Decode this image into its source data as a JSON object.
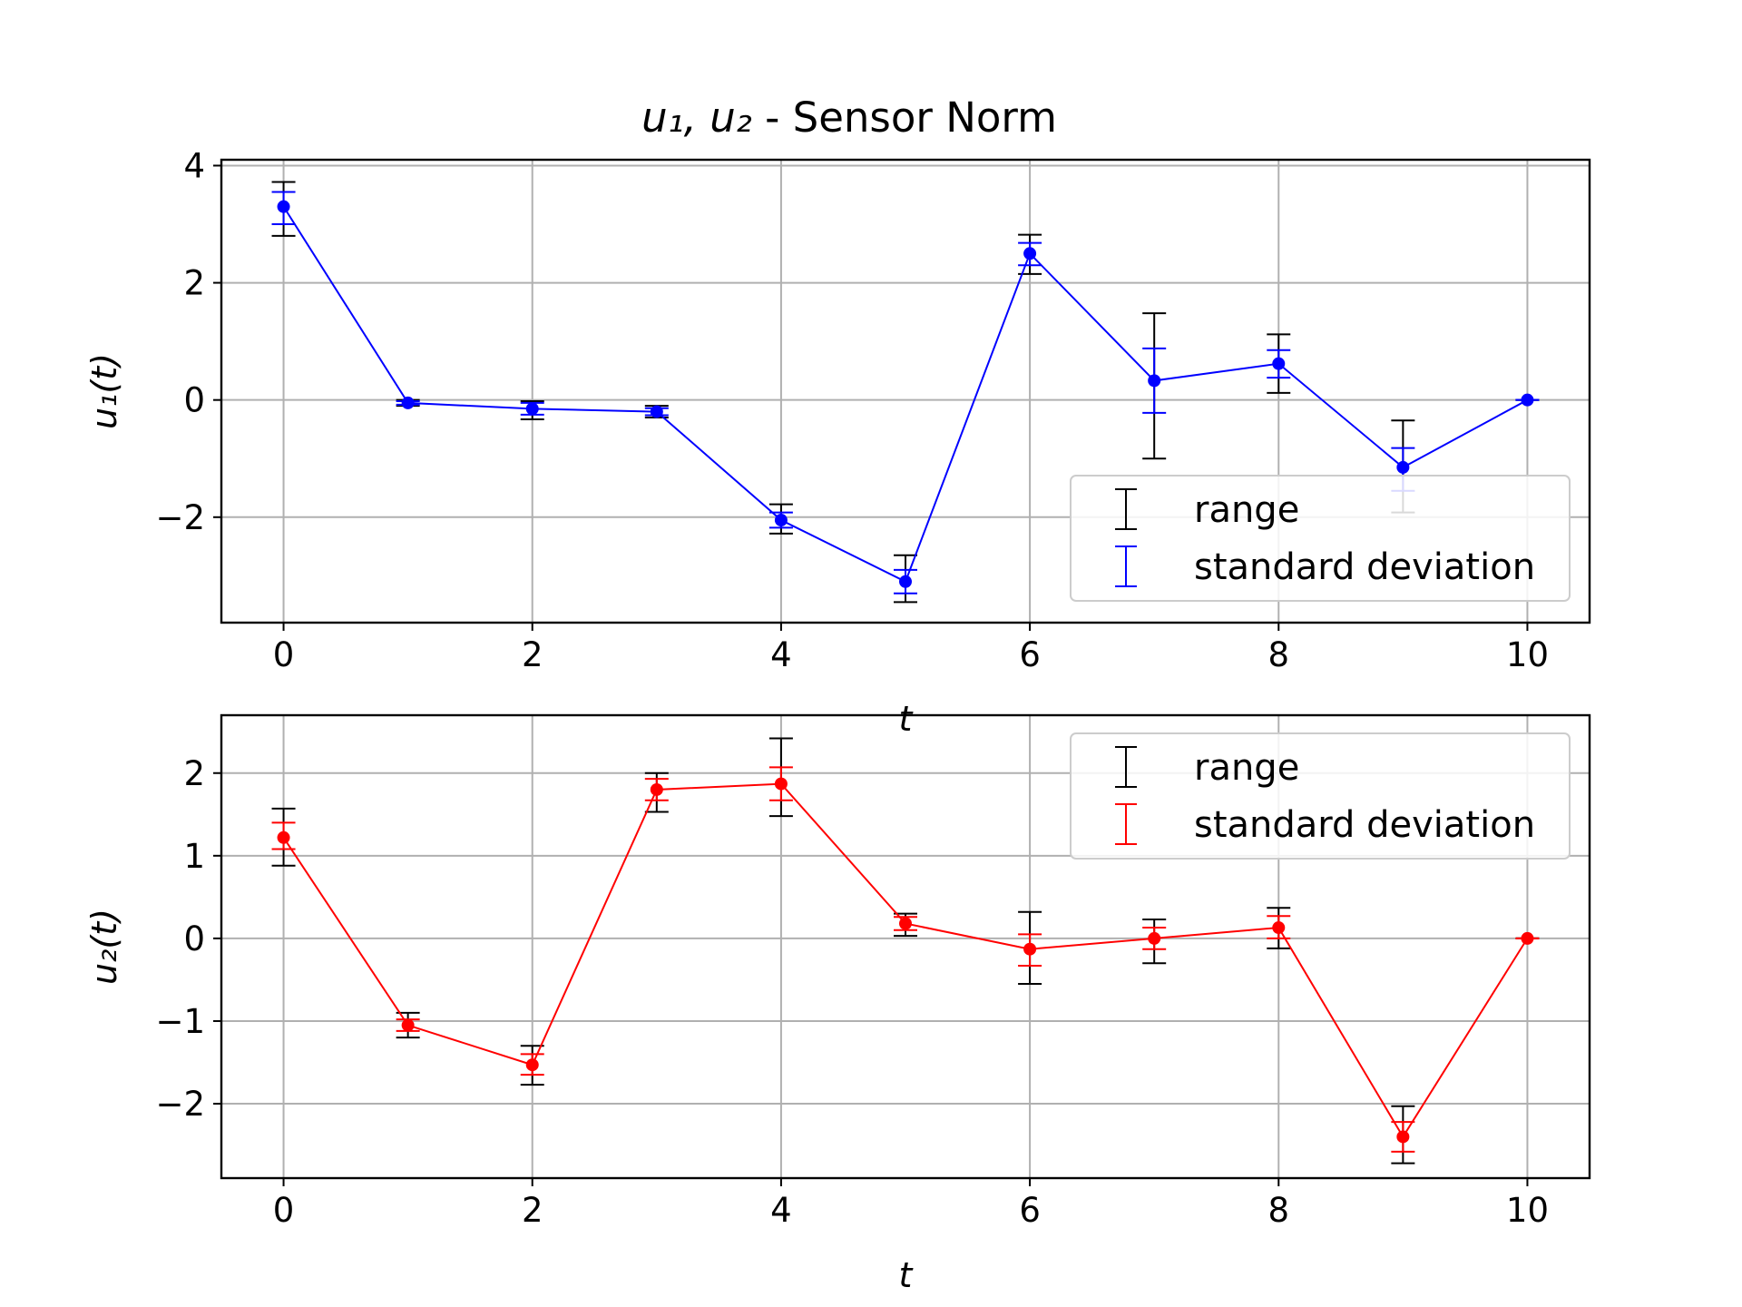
{
  "figure": {
    "title_math": "u₁, u₂",
    "title_text": " - Sensor Norm"
  },
  "colors": {
    "range": "#000000",
    "top_series": "#0000ff",
    "bottom_series": "#ff0000",
    "grid": "#b0b0b0"
  },
  "chart_data": [
    {
      "type": "line",
      "subtype": "errorbar",
      "xlabel": "t",
      "ylabel": "u₁(t)",
      "xlim": [
        -0.5,
        10.5
      ],
      "ylim": [
        -3.8,
        4.1
      ],
      "xticks": [
        0,
        2,
        4,
        6,
        8,
        10
      ],
      "yticks": [
        -2,
        0,
        2,
        4
      ],
      "ytick_labels": [
        "−2",
        "0",
        "2",
        "4"
      ],
      "grid": true,
      "legend_position": "lower-right",
      "x": [
        0,
        1,
        2,
        3,
        4,
        5,
        6,
        7,
        8,
        9,
        10
      ],
      "y": [
        3.3,
        -0.05,
        -0.15,
        -0.2,
        -2.05,
        -3.1,
        2.5,
        0.33,
        0.62,
        -1.15,
        0.0
      ],
      "range": {
        "name": "range",
        "low": [
          2.8,
          -0.1,
          -0.33,
          -0.3,
          -2.28,
          -3.45,
          2.15,
          -1.0,
          0.12,
          -1.92,
          0.0
        ],
        "high": [
          3.72,
          0.0,
          -0.02,
          -0.1,
          -1.78,
          -2.65,
          2.82,
          1.48,
          1.12,
          -0.35,
          0.0
        ]
      },
      "std": {
        "name": "standard deviation",
        "low": [
          3.0,
          -0.08,
          -0.25,
          -0.26,
          -2.18,
          -3.3,
          2.3,
          -0.22,
          0.38,
          -1.55,
          0.0
        ],
        "high": [
          3.55,
          -0.02,
          -0.05,
          -0.14,
          -1.92,
          -2.9,
          2.68,
          0.88,
          0.85,
          -0.82,
          0.0
        ]
      }
    },
    {
      "type": "line",
      "subtype": "errorbar",
      "xlabel": "t",
      "ylabel": "u₂(t)",
      "xlim": [
        -0.5,
        10.5
      ],
      "ylim": [
        -2.9,
        2.7
      ],
      "xticks": [
        0,
        2,
        4,
        6,
        8,
        10
      ],
      "yticks": [
        -2,
        -1,
        0,
        1,
        2
      ],
      "ytick_labels": [
        "−2",
        "−1",
        "0",
        "1",
        "2"
      ],
      "grid": true,
      "legend_position": "upper-right",
      "x": [
        0,
        1,
        2,
        3,
        4,
        5,
        6,
        7,
        8,
        9,
        10
      ],
      "y": [
        1.22,
        -1.05,
        -1.53,
        1.8,
        1.87,
        0.18,
        -0.13,
        0.0,
        0.13,
        -2.4,
        0.0
      ],
      "range": {
        "name": "range",
        "low": [
          0.88,
          -1.2,
          -1.77,
          1.53,
          1.48,
          0.03,
          -0.55,
          -0.3,
          -0.12,
          -2.72,
          0.0
        ],
        "high": [
          1.57,
          -0.9,
          -1.3,
          2.0,
          2.42,
          0.3,
          0.32,
          0.23,
          0.37,
          -2.03,
          0.0
        ]
      },
      "std": {
        "name": "standard deviation",
        "low": [
          1.08,
          -1.12,
          -1.65,
          1.67,
          1.67,
          0.1,
          -0.33,
          -0.13,
          0.0,
          -2.58,
          0.0
        ],
        "high": [
          1.4,
          -0.98,
          -1.4,
          1.93,
          2.07,
          0.26,
          0.05,
          0.13,
          0.27,
          -2.22,
          0.0
        ]
      }
    }
  ]
}
